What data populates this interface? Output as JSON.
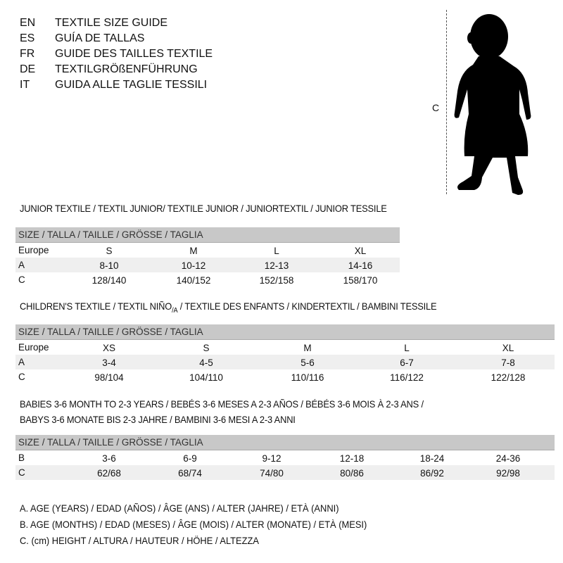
{
  "languages": [
    {
      "code": "EN",
      "text": "TEXTILE SIZE GUIDE"
    },
    {
      "code": "ES",
      "text": "GUÍA DE TALLAS"
    },
    {
      "code": "FR",
      "text": "GUIDE DES TAILLES TEXTILE"
    },
    {
      "code": "DE",
      "text": "TEXTILGRÖßENFÜHRUNG"
    },
    {
      "code": "IT",
      "text": "GUIDA ALLE TAGLIE TESSILI"
    }
  ],
  "figure": {
    "measure_label": "C",
    "icon": "child-silhouette"
  },
  "junior": {
    "title": "JUNIOR TEXTILE / TEXTIL JUNIOR/ TEXTILE JUNIOR / JUNIORTEXTIL / JUNIOR TESSILE",
    "header": "SIZE / TALLA / TAILLE / GRÖSSE / TAGLIA",
    "rows": [
      {
        "label": "Europe",
        "values": [
          "S",
          "M",
          "L",
          "XL"
        ]
      },
      {
        "label": "A",
        "values": [
          "8-10",
          "10-12",
          "12-13",
          "14-16"
        ]
      },
      {
        "label": "C",
        "values": [
          "128/140",
          "140/152",
          "152/158",
          "158/170"
        ]
      }
    ]
  },
  "children": {
    "title": "CHILDREN'S TEXTILE / TEXTIL NIÑO",
    "title_sub": "/A",
    "title_rest": " / TEXTILE DES ENFANTS / KINDERTEXTIL / BAMBINI TESSILE",
    "header": "SIZE / TALLA / TAILLE / GRÖSSE / TAGLIA",
    "rows": [
      {
        "label": "Europe",
        "values": [
          "XS",
          "S",
          "M",
          "L",
          "XL"
        ]
      },
      {
        "label": "A",
        "values": [
          "3-4",
          "4-5",
          "5-6",
          "6-7",
          "7-8"
        ]
      },
      {
        "label": "C",
        "values": [
          "98/104",
          "104/110",
          "110/116",
          "116/122",
          "122/128"
        ]
      }
    ]
  },
  "babies": {
    "title_line1": "BABIES 3-6 MONTH TO 2-3 YEARS / BEBÉS 3-6 MESES A 2-3 AÑOS / BÉBÉS 3-6 MOIS À 2-3 ANS /",
    "title_line2": "BABYS 3-6 MONATE BIS 2-3 JAHRE / BAMBINI 3-6 MESI A 2-3 ANNI",
    "header": "SIZE / TALLA / TAILLE / GRÖSSE / TAGLIA",
    "rows": [
      {
        "label": "B",
        "values": [
          "3-6",
          "6-9",
          "9-12",
          "12-18",
          "18-24",
          "24-36"
        ]
      },
      {
        "label": "C",
        "values": [
          "62/68",
          "68/74",
          "74/80",
          "80/86",
          "86/92",
          "92/98"
        ]
      }
    ]
  },
  "legend": [
    "A. AGE (YEARS) / EDAD (AÑOS) / ÂGE (ANS) / ALTER (JAHRE) / ETÀ (ANNI)",
    "B. AGE (MONTHS) / EDAD (MESES) / ÂGE (MOIS) / ALTER (MONATE) / ETÀ (MESI)",
    "C. (cm) HEIGHT / ALTURA / HAUTEUR / HÖHE / ALTEZZA"
  ]
}
